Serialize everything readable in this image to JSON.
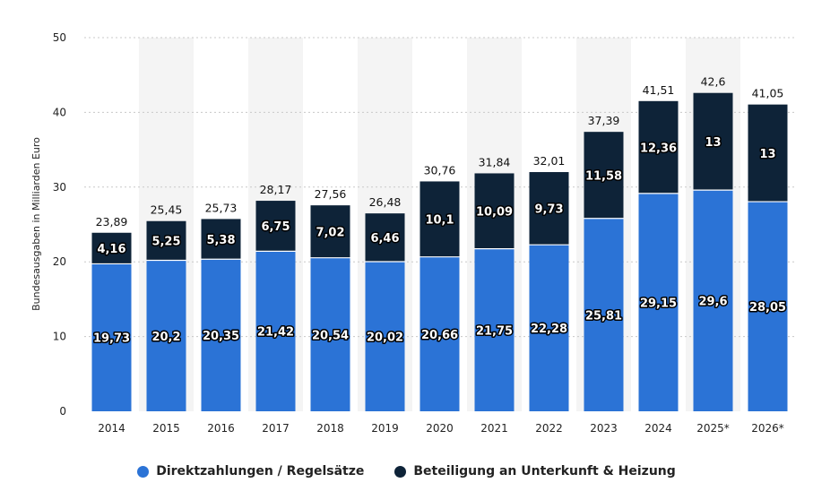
{
  "chart_data": {
    "type": "bar",
    "stacked": true,
    "ylabel": "Bundesausgaben in Milliarden Euro",
    "ylim": [
      0,
      50
    ],
    "yticks": [
      0,
      10,
      20,
      30,
      40,
      50
    ],
    "grid": true,
    "legend_position": "bottom",
    "categories": [
      "2014",
      "2015",
      "2016",
      "2017",
      "2018",
      "2019",
      "2020",
      "2021",
      "2022",
      "2023",
      "2024",
      "2025*",
      "2026*"
    ],
    "series": [
      {
        "name": "Direktzahlungen / Regelsätze",
        "color": "#2b73d6",
        "values": [
          19.73,
          20.2,
          20.35,
          21.42,
          20.54,
          20.02,
          20.66,
          21.75,
          22.28,
          25.81,
          29.15,
          29.6,
          28.05
        ],
        "labels": [
          "19,73",
          "20,2",
          "20,35",
          "21,42",
          "20,54",
          "20,02",
          "20,66",
          "21,75",
          "22,28",
          "25,81",
          "29,15",
          "29,6",
          "28,05"
        ]
      },
      {
        "name": "Beteiligung an Unterkunft & Heizung",
        "color": "#0e2338",
        "values": [
          4.16,
          5.25,
          5.38,
          6.75,
          7.02,
          6.46,
          10.1,
          10.09,
          9.73,
          11.58,
          12.36,
          13,
          13
        ],
        "labels": [
          "4,16",
          "5,25",
          "5,38",
          "6,75",
          "7,02",
          "6,46",
          "10,1",
          "10,09",
          "9,73",
          "11,58",
          "12,36",
          "13",
          "13"
        ]
      }
    ],
    "totals": [
      23.89,
      25.45,
      25.73,
      28.17,
      27.56,
      26.48,
      30.76,
      31.84,
      32.01,
      37.39,
      41.51,
      42.6,
      41.05
    ],
    "total_labels": [
      "23,89",
      "25,45",
      "25,73",
      "28,17",
      "27,56",
      "26,48",
      "30,76",
      "31,84",
      "32,01",
      "37,39",
      "41,51",
      "42,6",
      "41,05"
    ]
  }
}
